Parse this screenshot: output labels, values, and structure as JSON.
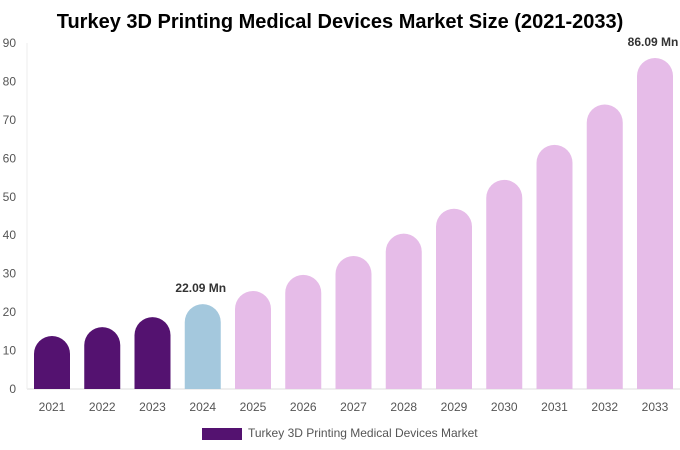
{
  "chart_data": {
    "type": "bar",
    "title": "Turkey 3D Printing Medical Devices Market Size (2021-2033)",
    "categories": [
      "2021",
      "2022",
      "2023",
      "2024",
      "2025",
      "2026",
      "2027",
      "2028",
      "2029",
      "2030",
      "2031",
      "2032",
      "2033"
    ],
    "series": [
      {
        "name": "Turkey 3D Printing Medical Devices Market",
        "values": [
          13.8,
          16.1,
          18.7,
          22.09,
          25.5,
          29.7,
          34.6,
          40.4,
          46.9,
          54.4,
          63.5,
          74.0,
          86.09
        ]
      }
    ],
    "data_labels": [
      {
        "index": 3,
        "text": "22.09 Mn"
      },
      {
        "index": 12,
        "text": "86.09 Mn"
      }
    ],
    "ylim": [
      0,
      90
    ],
    "yticks": [
      0,
      10,
      20,
      30,
      40,
      50,
      60,
      70,
      80,
      90
    ],
    "xlabel": "",
    "ylabel": "",
    "grid": false,
    "legend_position": "bottom",
    "colors": {
      "historical": "#541270",
      "base_year": "#a4c8dd",
      "forecast": "#e6bce8"
    }
  }
}
